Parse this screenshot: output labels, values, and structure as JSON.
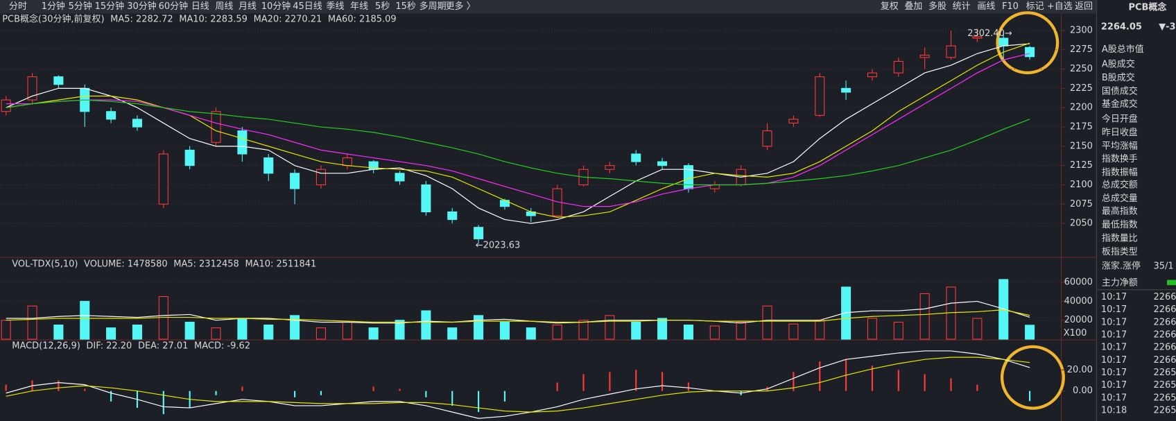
{
  "toolbar": {
    "left": [
      "分时",
      "1分钟",
      "5分钟",
      "15分钟",
      "30分钟",
      "60分钟",
      "日线",
      "周线",
      "月线",
      "10分钟",
      "45日线",
      "季线",
      "年线",
      "5秒",
      "15秒",
      "多周期",
      "更多 〉"
    ],
    "right": [
      "复权",
      "叠加",
      "多股",
      "统计",
      "画线",
      "F10",
      "标记",
      "+自选",
      "返回"
    ]
  },
  "chart_data": [
    {
      "type": "candlestick",
      "title": "PCB概念(30分钟,前复权)",
      "up_color": "#ff3a3a",
      "down_color": "#54f6f6",
      "ylim": [
        2006,
        2320
      ],
      "yticks": [
        2050,
        2075,
        2100,
        2125,
        2150,
        2175,
        2200,
        2225,
        2250,
        2275,
        2300
      ],
      "grid": true,
      "ohlc": [
        [
          2195,
          2215,
          2190,
          2210
        ],
        [
          2210,
          2245,
          2205,
          2240
        ],
        [
          2240,
          2242,
          2225,
          2230
        ],
        [
          2225,
          2230,
          2175,
          2195
        ],
        [
          2195,
          2200,
          2180,
          2185
        ],
        [
          2185,
          2190,
          2170,
          2175
        ],
        [
          2075,
          2145,
          2070,
          2140
        ],
        [
          2145,
          2150,
          2120,
          2125
        ],
        [
          2155,
          2200,
          2150,
          2195
        ],
        [
          2170,
          2175,
          2130,
          2140
        ],
        [
          2135,
          2140,
          2105,
          2115
        ],
        [
          2115,
          2120,
          2075,
          2095
        ],
        [
          2100,
          2125,
          2095,
          2120
        ],
        [
          2125,
          2140,
          2120,
          2135
        ],
        [
          2130,
          2132,
          2115,
          2120
        ],
        [
          2115,
          2118,
          2100,
          2105
        ],
        [
          2100,
          2105,
          2060,
          2065
        ],
        [
          2065,
          2070,
          2050,
          2055
        ],
        [
          2045,
          2048,
          2023.63,
          2030
        ],
        [
          2080,
          2082,
          2068,
          2072
        ],
        [
          2065,
          2070,
          2052,
          2060
        ],
        [
          2060,
          2100,
          2058,
          2095
        ],
        [
          2100,
          2125,
          2098,
          2120
        ],
        [
          2120,
          2130,
          2115,
          2125
        ],
        [
          2140,
          2145,
          2125,
          2130
        ],
        [
          2130,
          2135,
          2120,
          2125
        ],
        [
          2125,
          2128,
          2090,
          2095
        ],
        [
          2095,
          2105,
          2090,
          2100
        ],
        [
          2100,
          2125,
          2098,
          2120
        ],
        [
          2150,
          2180,
          2145,
          2170
        ],
        [
          2180,
          2190,
          2175,
          2185
        ],
        [
          2190,
          2245,
          2188,
          2240
        ],
        [
          2225,
          2235,
          2210,
          2220
        ],
        [
          2240,
          2250,
          2235,
          2245
        ],
        [
          2245,
          2265,
          2240,
          2260
        ],
        [
          2265,
          2278,
          2250,
          2268
        ],
        [
          2265,
          2300,
          2262,
          2280
        ],
        [
          2290,
          2302.4,
          2285,
          2292
        ],
        [
          2290,
          2296,
          2260,
          2280
        ],
        [
          2278,
          2280,
          2262,
          2266
        ]
      ],
      "series": [
        {
          "name": "MA5",
          "legend_label": "MA5: 2282.72",
          "color": "#ffffff",
          "values": [
            2200,
            2215,
            2225,
            2225,
            2215,
            2200,
            2180,
            2160,
            2150,
            2150,
            2145,
            2125,
            2115,
            2115,
            2120,
            2122,
            2112,
            2095,
            2070,
            2055,
            2050,
            2055,
            2065,
            2085,
            2105,
            2120,
            2120,
            2115,
            2110,
            2115,
            2130,
            2160,
            2185,
            2205,
            2225,
            2245,
            2255,
            2270,
            2280,
            2282.72
          ]
        },
        {
          "name": "MA10",
          "legend_label": "MA10: 2283.59",
          "color": "#e8e800",
          "values": [
            2200,
            2205,
            2210,
            2215,
            2215,
            2210,
            2200,
            2190,
            2170,
            2160,
            2150,
            2140,
            2130,
            2125,
            2122,
            2120,
            2118,
            2110,
            2095,
            2080,
            2065,
            2058,
            2060,
            2065,
            2080,
            2095,
            2108,
            2115,
            2112,
            2110,
            2115,
            2130,
            2150,
            2170,
            2195,
            2215,
            2235,
            2255,
            2272,
            2283.59
          ]
        },
        {
          "name": "MA20",
          "legend_label": "MA20: 2270.21",
          "color": "#ff2cff",
          "values": [
            2205,
            2205,
            2208,
            2210,
            2210,
            2208,
            2200,
            2190,
            2180,
            2172,
            2165,
            2155,
            2145,
            2140,
            2135,
            2130,
            2125,
            2118,
            2108,
            2098,
            2088,
            2078,
            2072,
            2072,
            2078,
            2088,
            2095,
            2100,
            2100,
            2102,
            2110,
            2125,
            2145,
            2165,
            2185,
            2205,
            2225,
            2245,
            2262,
            2270.21
          ]
        },
        {
          "name": "MA60",
          "legend_label": "MA60: 2185.09",
          "color": "#22d022",
          "values": [
            2200,
            2205,
            2208,
            2210,
            2208,
            2205,
            2200,
            2195,
            2192,
            2188,
            2185,
            2180,
            2175,
            2172,
            2168,
            2162,
            2155,
            2148,
            2140,
            2130,
            2122,
            2115,
            2110,
            2108,
            2105,
            2102,
            2100,
            2100,
            2100,
            2102,
            2105,
            2108,
            2112,
            2118,
            2125,
            2135,
            2145,
            2158,
            2172,
            2185.09
          ]
        }
      ],
      "annotations": [
        {
          "text": "2302.40→"
        },
        {
          "text": "←2023.63"
        }
      ]
    },
    {
      "type": "volume",
      "title": "VOL-TDX(5,10)",
      "unit_label": "X100",
      "ylim": [
        0,
        72800
      ],
      "yticks": [
        20000,
        40000,
        60000
      ],
      "values": [
        20000,
        35000,
        15000,
        40000,
        12000,
        15000,
        45000,
        18000,
        12000,
        22000,
        15000,
        25000,
        12000,
        18000,
        12000,
        20000,
        30000,
        12000,
        25000,
        18000,
        12000,
        15000,
        20000,
        25000,
        18000,
        22000,
        15000,
        14000,
        18000,
        35000,
        16000,
        20000,
        55000,
        22000,
        18000,
        48000,
        55000,
        22000,
        63000,
        14786
      ],
      "series": [
        {
          "name": "VOLUME",
          "legend_label": "VOLUME: 1478580",
          "color": "#ffffff"
        },
        {
          "name": "MA5",
          "legend_label": "MA5: 2312458",
          "color": "#ffffff",
          "values": [
            22000,
            22000,
            24000,
            25000,
            24000,
            23000,
            25000,
            26000,
            20000,
            22000,
            22000,
            20000,
            18000,
            18000,
            17000,
            17000,
            19000,
            18000,
            20000,
            21000,
            19000,
            17000,
            18000,
            20000,
            20000,
            20000,
            20000,
            19000,
            17000,
            20000,
            20000,
            20000,
            28000,
            30000,
            30000,
            32000,
            38000,
            40000,
            32000,
            23125
          ]
        },
        {
          "name": "MA10",
          "legend_label": "MA10: 2511841",
          "color": "#e8e800",
          "values": [
            20000,
            21000,
            22000,
            22000,
            22000,
            22000,
            23000,
            23000,
            22000,
            22000,
            21000,
            21000,
            20000,
            19000,
            18000,
            18000,
            18000,
            18000,
            19000,
            19000,
            19000,
            18000,
            18000,
            19000,
            19000,
            20000,
            20000,
            19000,
            19000,
            19000,
            19000,
            19000,
            22000,
            24000,
            25000,
            26000,
            28000,
            29000,
            31000,
            25118
          ]
        }
      ]
    },
    {
      "type": "macd",
      "title": "MACD(12,26,9)",
      "ylim": [
        -28.5,
        47
      ],
      "yticks": [
        {
          "value": 0,
          "label": "0.00"
        },
        {
          "value": 20,
          "label": "20.00"
        }
      ],
      "up_color": "#ff3a3a",
      "down_color": "#54f6f6",
      "series": [
        {
          "name": "DIF",
          "legend_label": "DIF: 22.20",
          "color": "#ffffff",
          "values": [
            -2,
            5,
            8,
            6,
            -2,
            -8,
            -15,
            -16,
            -12,
            -8,
            -10,
            -14,
            -14,
            -12,
            -10,
            -10,
            -14,
            -20,
            -26,
            -24,
            -20,
            -15,
            -8,
            -3,
            2,
            5,
            3,
            0,
            -2,
            2,
            12,
            22,
            30,
            33,
            36,
            38,
            38,
            35,
            30,
            22.2
          ]
        },
        {
          "name": "DEA",
          "legend_label": "DEA: 27.01",
          "color": "#e8e800",
          "values": [
            -5,
            0,
            3,
            5,
            3,
            0,
            -4,
            -8,
            -10,
            -10,
            -10,
            -11,
            -12,
            -12,
            -12,
            -11,
            -11,
            -13,
            -16,
            -19,
            -20,
            -19,
            -16,
            -12,
            -8,
            -4,
            -1,
            0,
            0,
            0,
            3,
            8,
            15,
            21,
            26,
            30,
            32,
            32,
            30,
            27.01
          ]
        },
        {
          "name": "MACD",
          "legend_label": "MACD: -9.62",
          "color": "#ff2cff",
          "values": [
            6,
            10,
            10,
            2,
            -10,
            -16,
            -22,
            -16,
            -4,
            4,
            0,
            -6,
            -4,
            0,
            4,
            2,
            -6,
            -14,
            -20,
            -10,
            0,
            8,
            16,
            18,
            20,
            18,
            8,
            0,
            -4,
            4,
            18,
            28,
            30,
            24,
            20,
            16,
            12,
            6,
            0,
            -9.62
          ]
        }
      ]
    }
  ],
  "side_panel": {
    "title": "PCB概念",
    "price": "2264.05",
    "change": "▼-3",
    "items": [
      "A股总市值",
      "A股成交",
      "B股成交",
      "国债成交",
      "基金成交",
      "今日开盘",
      "昨日收盘",
      "平均涨幅",
      "指数换手",
      "指数振幅",
      "总成交额",
      "总成交量",
      "最高指数",
      "最低指数",
      "指数量比",
      "板指类型",
      "涨家.涨停",
      "主力净额"
    ],
    "up_count": "35/1",
    "ticks": [
      {
        "time": "10:17",
        "price": "2266"
      },
      {
        "time": "10:17",
        "price": "2266"
      },
      {
        "time": "10:17",
        "price": "2266"
      },
      {
        "time": "10:17",
        "price": "2266"
      },
      {
        "time": "10:17",
        "price": "2266"
      },
      {
        "time": "10:17",
        "price": "2266"
      },
      {
        "time": "10:17",
        "price": "2265"
      },
      {
        "time": "10:17",
        "price": "2265"
      },
      {
        "time": "10:17",
        "price": "2265"
      },
      {
        "time": "10:18",
        "price": "2265"
      }
    ]
  }
}
